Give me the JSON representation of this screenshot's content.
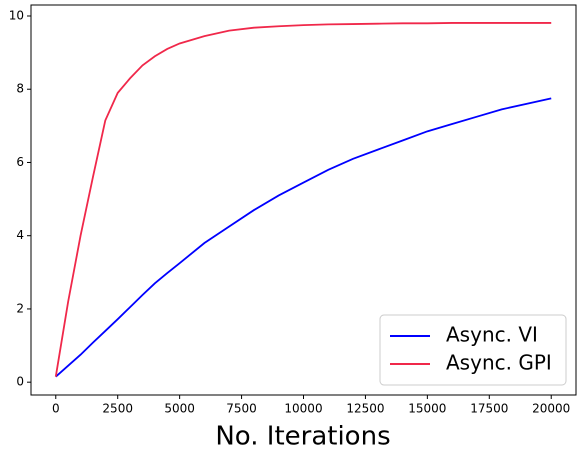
{
  "chart_data": {
    "type": "line",
    "x_label": "No. Iterations",
    "x": [
      0,
      500,
      1000,
      1500,
      2000,
      2500,
      3000,
      3500,
      4000,
      4500,
      5000,
      6000,
      7000,
      8000,
      9000,
      10000,
      11000,
      12000,
      13000,
      14000,
      15000,
      16000,
      17000,
      18000,
      19000,
      20000
    ],
    "series": [
      {
        "name": "Async. VI",
        "color": "#0000ff",
        "values": [
          0.15,
          0.45,
          0.75,
          1.08,
          1.4,
          1.72,
          2.05,
          2.38,
          2.7,
          2.98,
          3.25,
          3.8,
          4.25,
          4.7,
          5.1,
          5.45,
          5.8,
          6.1,
          6.35,
          6.6,
          6.85,
          7.05,
          7.25,
          7.45,
          7.6,
          7.75
        ]
      },
      {
        "name": "Async. GPI",
        "color": "#f0284a",
        "values": [
          0.15,
          2.2,
          4.0,
          5.6,
          7.15,
          7.9,
          8.3,
          8.65,
          8.9,
          9.1,
          9.25,
          9.45,
          9.6,
          9.68,
          9.72,
          9.75,
          9.77,
          9.78,
          9.79,
          9.8,
          9.8,
          9.81,
          9.81,
          9.81,
          9.81,
          9.81
        ]
      }
    ],
    "xlim": [
      -1000,
      21000
    ],
    "ylim": [
      -0.35,
      10.3
    ],
    "xticks": [
      0,
      2500,
      5000,
      7500,
      10000,
      12500,
      15000,
      17500,
      20000
    ],
    "yticks": [
      0,
      2,
      4,
      6,
      8,
      10
    ],
    "legend": "lower right",
    "grid": false
  }
}
